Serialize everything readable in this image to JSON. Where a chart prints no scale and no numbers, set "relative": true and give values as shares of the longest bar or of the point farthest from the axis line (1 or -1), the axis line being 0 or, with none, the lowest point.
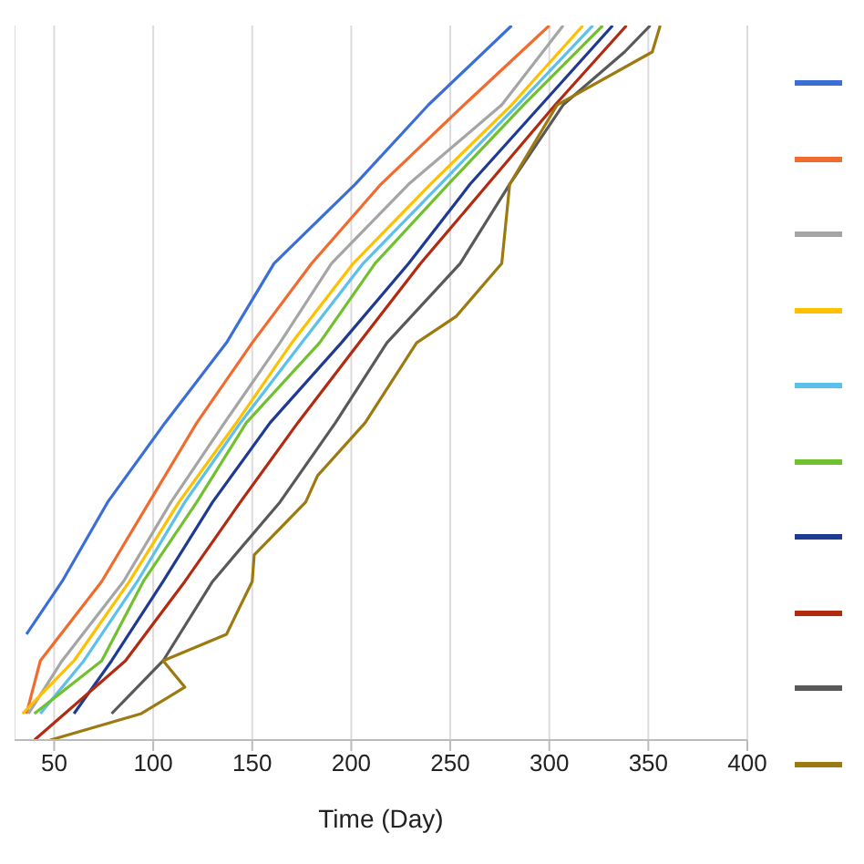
{
  "chart_data": {
    "type": "line",
    "xlabel": "Time (Day)",
    "relative": true,
    "xlim": [
      30,
      400
    ],
    "xticks": [
      50,
      100,
      150,
      200,
      250,
      300,
      350,
      400
    ],
    "grid": "x",
    "marker": "none",
    "line_style": "solid",
    "series": [
      {
        "color": "#3a6fd8",
        "x": [
          36,
          54,
          77,
          106,
          137,
          161,
          202,
          239,
          281
        ],
        "values": [
          0.148,
          0.222,
          0.333,
          0.444,
          0.556,
          0.667,
          0.778,
          0.889,
          1
        ]
      },
      {
        "color": "#f26b2e",
        "x": [
          36,
          43,
          74,
          98,
          122,
          150,
          180,
          215,
          257,
          300
        ],
        "values": [
          0.037,
          0.111,
          0.222,
          0.333,
          0.444,
          0.556,
          0.667,
          0.778,
          0.889,
          1
        ]
      },
      {
        "color": "#a5a5a5",
        "x": [
          37,
          54,
          85,
          109,
          136,
          164,
          190,
          229,
          276,
          307
        ],
        "values": [
          0.037,
          0.111,
          0.222,
          0.333,
          0.444,
          0.556,
          0.667,
          0.778,
          0.889,
          1
        ]
      },
      {
        "color": "#ffc000",
        "x": [
          34,
          60,
          88,
          113,
          142,
          170,
          201,
          240,
          281,
          317
        ],
        "values": [
          0.037,
          0.111,
          0.222,
          0.333,
          0.444,
          0.556,
          0.667,
          0.778,
          0.889,
          1
        ]
      },
      {
        "color": "#5bc0eb",
        "x": [
          43,
          65,
          92,
          116,
          144,
          175,
          206,
          245,
          284,
          322
        ],
        "values": [
          0.037,
          0.111,
          0.222,
          0.333,
          0.444,
          0.556,
          0.667,
          0.778,
          0.889,
          1
        ]
      },
      {
        "color": "#70c030",
        "x": [
          40,
          74,
          95,
          122,
          147,
          184,
          212,
          249,
          287,
          327
        ],
        "values": [
          0.037,
          0.111,
          0.222,
          0.333,
          0.444,
          0.556,
          0.667,
          0.778,
          0.889,
          1
        ]
      },
      {
        "color": "#1f3a93",
        "x": [
          60,
          79,
          105,
          130,
          159,
          195,
          229,
          260,
          296,
          332
        ],
        "values": [
          0.037,
          0.111,
          0.222,
          0.333,
          0.444,
          0.556,
          0.667,
          0.778,
          0.889,
          1
        ]
      },
      {
        "color": "#b22a10",
        "x": [
          40,
          86,
          116,
          144,
          173,
          204,
          235,
          269,
          303,
          339
        ],
        "values": [
          0,
          0.111,
          0.222,
          0.333,
          0.444,
          0.556,
          0.667,
          0.778,
          0.889,
          1
        ]
      },
      {
        "color": "#595959",
        "x": [
          79,
          105,
          130,
          164,
          192,
          218,
          255,
          280,
          307,
          338,
          351
        ],
        "values": [
          0.037,
          0.111,
          0.222,
          0.333,
          0.444,
          0.556,
          0.667,
          0.778,
          0.889,
          0.963,
          1
        ]
      },
      {
        "color": "#9c7a10",
        "x": [
          48,
          94,
          116,
          105,
          137,
          150,
          151,
          177,
          183,
          207,
          233,
          253,
          276,
          280,
          304,
          352,
          356
        ],
        "values": [
          0,
          0.037,
          0.074,
          0.111,
          0.148,
          0.222,
          0.259,
          0.333,
          0.37,
          0.444,
          0.556,
          0.593,
          0.667,
          0.778,
          0.889,
          0.963,
          1
        ]
      }
    ]
  }
}
